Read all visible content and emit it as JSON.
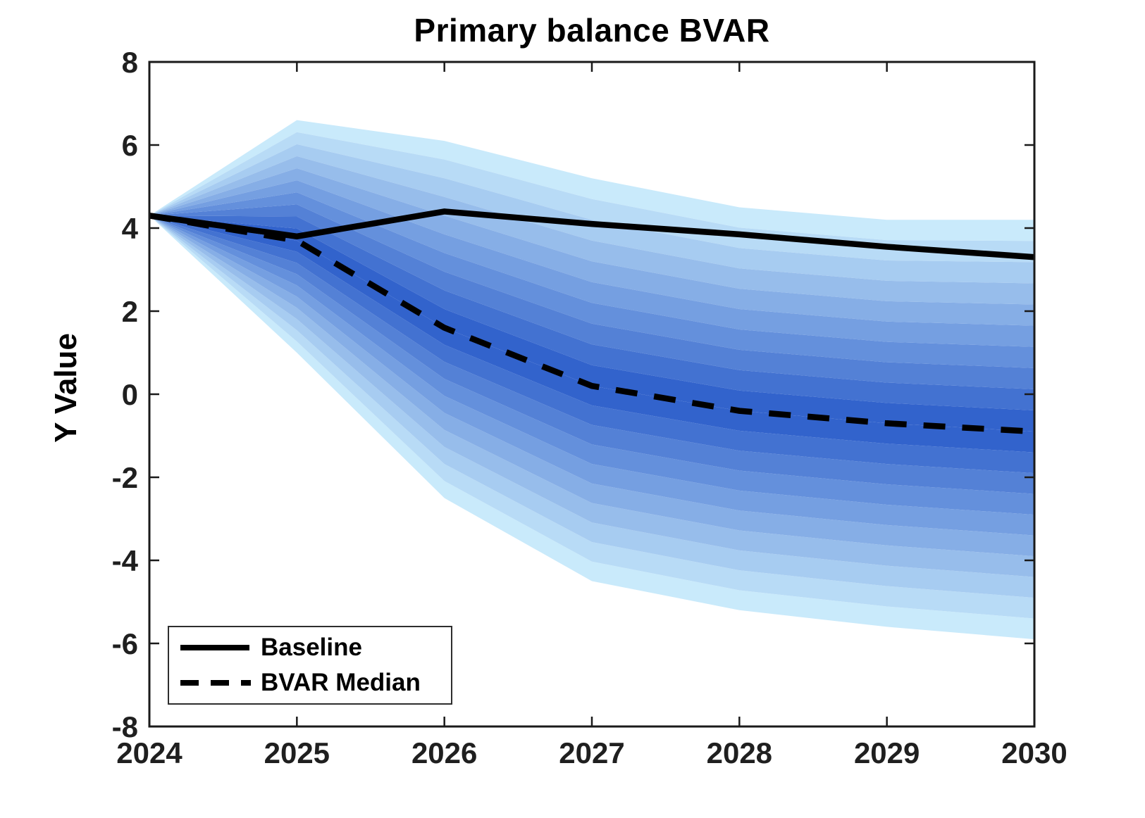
{
  "title": "Primary balance BVAR",
  "chart_data": {
    "type": "line",
    "subtype": "fan-chart",
    "title": "Primary balance BVAR",
    "xlabel": "",
    "ylabel": "Y Value",
    "x": [
      2024,
      2025,
      2026,
      2027,
      2028,
      2029,
      2030
    ],
    "xtick_labels": [
      "2024",
      "2025",
      "2026",
      "2027",
      "2028",
      "2029",
      "2030"
    ],
    "ytick_labels": [
      "-8",
      "-6",
      "-4",
      "-2",
      "0",
      "2",
      "4",
      "6",
      "8"
    ],
    "yticks": [
      -8,
      -6,
      -4,
      -2,
      0,
      2,
      4,
      6,
      8
    ],
    "ylim": [
      -8,
      8
    ],
    "grid": false,
    "series": [
      {
        "name": "Baseline",
        "style": "solid",
        "color": "#000000",
        "values": [
          4.3,
          3.8,
          4.4,
          4.1,
          3.85,
          3.55,
          3.3
        ]
      },
      {
        "name": "BVAR Median",
        "style": "dashed",
        "color": "#000000",
        "values": [
          4.3,
          3.7,
          1.6,
          0.2,
          -0.4,
          -0.7,
          -0.9
        ]
      }
    ],
    "fan": {
      "median": [
        4.3,
        3.7,
        1.6,
        0.2,
        -0.4,
        -0.7,
        -0.9
      ],
      "upper_envelope": [
        4.3,
        6.6,
        6.1,
        5.2,
        4.5,
        4.2,
        4.2
      ],
      "lower_envelope": [
        4.3,
        1.0,
        -2.5,
        -4.5,
        -5.2,
        -5.6,
        -5.9
      ],
      "bands_per_side": 10,
      "outer_color": "#c9eafb",
      "inner_color": "#3263cc"
    },
    "legend": {
      "position": "southwest",
      "entries": [
        "Baseline",
        "BVAR Median"
      ]
    },
    "axis_color": "#1a1a1a",
    "tick_label_color": "#1f1f1f"
  }
}
